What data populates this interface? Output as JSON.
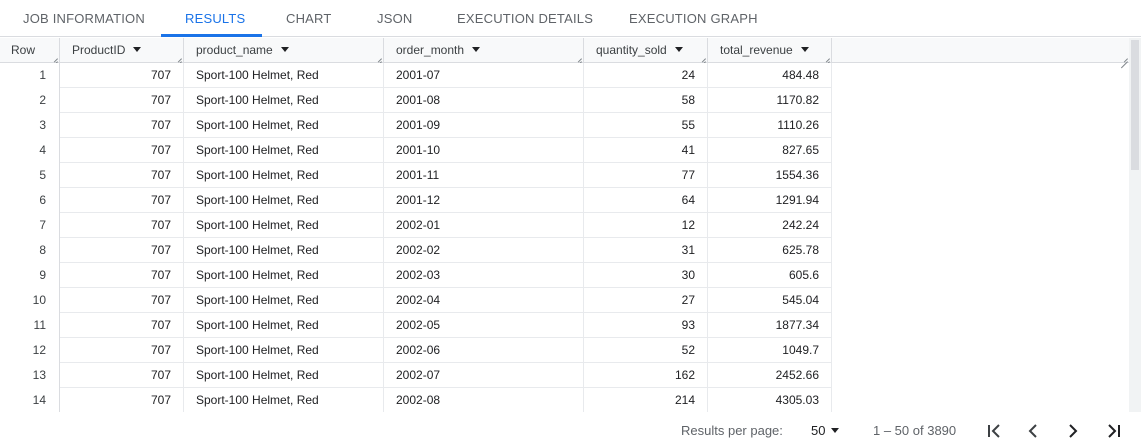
{
  "tabs": [
    {
      "label": "JOB INFORMATION"
    },
    {
      "label": "RESULTS"
    },
    {
      "label": "CHART"
    },
    {
      "label": "JSON"
    },
    {
      "label": "EXECUTION DETAILS"
    },
    {
      "label": "EXECUTION GRAPH"
    }
  ],
  "active_tab": "RESULTS",
  "table": {
    "row_header": "Row",
    "columns": [
      "ProductID",
      "product_name",
      "order_month",
      "quantity_sold",
      "total_revenue"
    ],
    "rows": [
      [
        "1",
        "707",
        "Sport-100 Helmet, Red",
        "2001-07",
        "24",
        "484.48"
      ],
      [
        "2",
        "707",
        "Sport-100 Helmet, Red",
        "2001-08",
        "58",
        "1170.82"
      ],
      [
        "3",
        "707",
        "Sport-100 Helmet, Red",
        "2001-09",
        "55",
        "1110.26"
      ],
      [
        "4",
        "707",
        "Sport-100 Helmet, Red",
        "2001-10",
        "41",
        "827.65"
      ],
      [
        "5",
        "707",
        "Sport-100 Helmet, Red",
        "2001-11",
        "77",
        "1554.36"
      ],
      [
        "6",
        "707",
        "Sport-100 Helmet, Red",
        "2001-12",
        "64",
        "1291.94"
      ],
      [
        "7",
        "707",
        "Sport-100 Helmet, Red",
        "2002-01",
        "12",
        "242.24"
      ],
      [
        "8",
        "707",
        "Sport-100 Helmet, Red",
        "2002-02",
        "31",
        "625.78"
      ],
      [
        "9",
        "707",
        "Sport-100 Helmet, Red",
        "2002-03",
        "30",
        "605.6"
      ],
      [
        "10",
        "707",
        "Sport-100 Helmet, Red",
        "2002-04",
        "27",
        "545.04"
      ],
      [
        "11",
        "707",
        "Sport-100 Helmet, Red",
        "2002-05",
        "93",
        "1877.34"
      ],
      [
        "12",
        "707",
        "Sport-100 Helmet, Red",
        "2002-06",
        "52",
        "1049.7"
      ],
      [
        "13",
        "707",
        "Sport-100 Helmet, Red",
        "2002-07",
        "162",
        "2452.66"
      ],
      [
        "14",
        "707",
        "Sport-100 Helmet, Red",
        "2002-08",
        "214",
        "4305.03"
      ]
    ]
  },
  "footer": {
    "results_per_page_label": "Results per page:",
    "results_per_page_value": "50",
    "range_text": "1 – 50 of 3890",
    "icons": [
      "first-page-icon",
      "previous-page-icon",
      "next-page-icon",
      "last-page-icon"
    ]
  },
  "colors": {
    "accent": "#1a73e8",
    "border": "#dadce0",
    "header_bg": "#f8f9fa",
    "text": "#202124",
    "muted": "#5f6368"
  }
}
